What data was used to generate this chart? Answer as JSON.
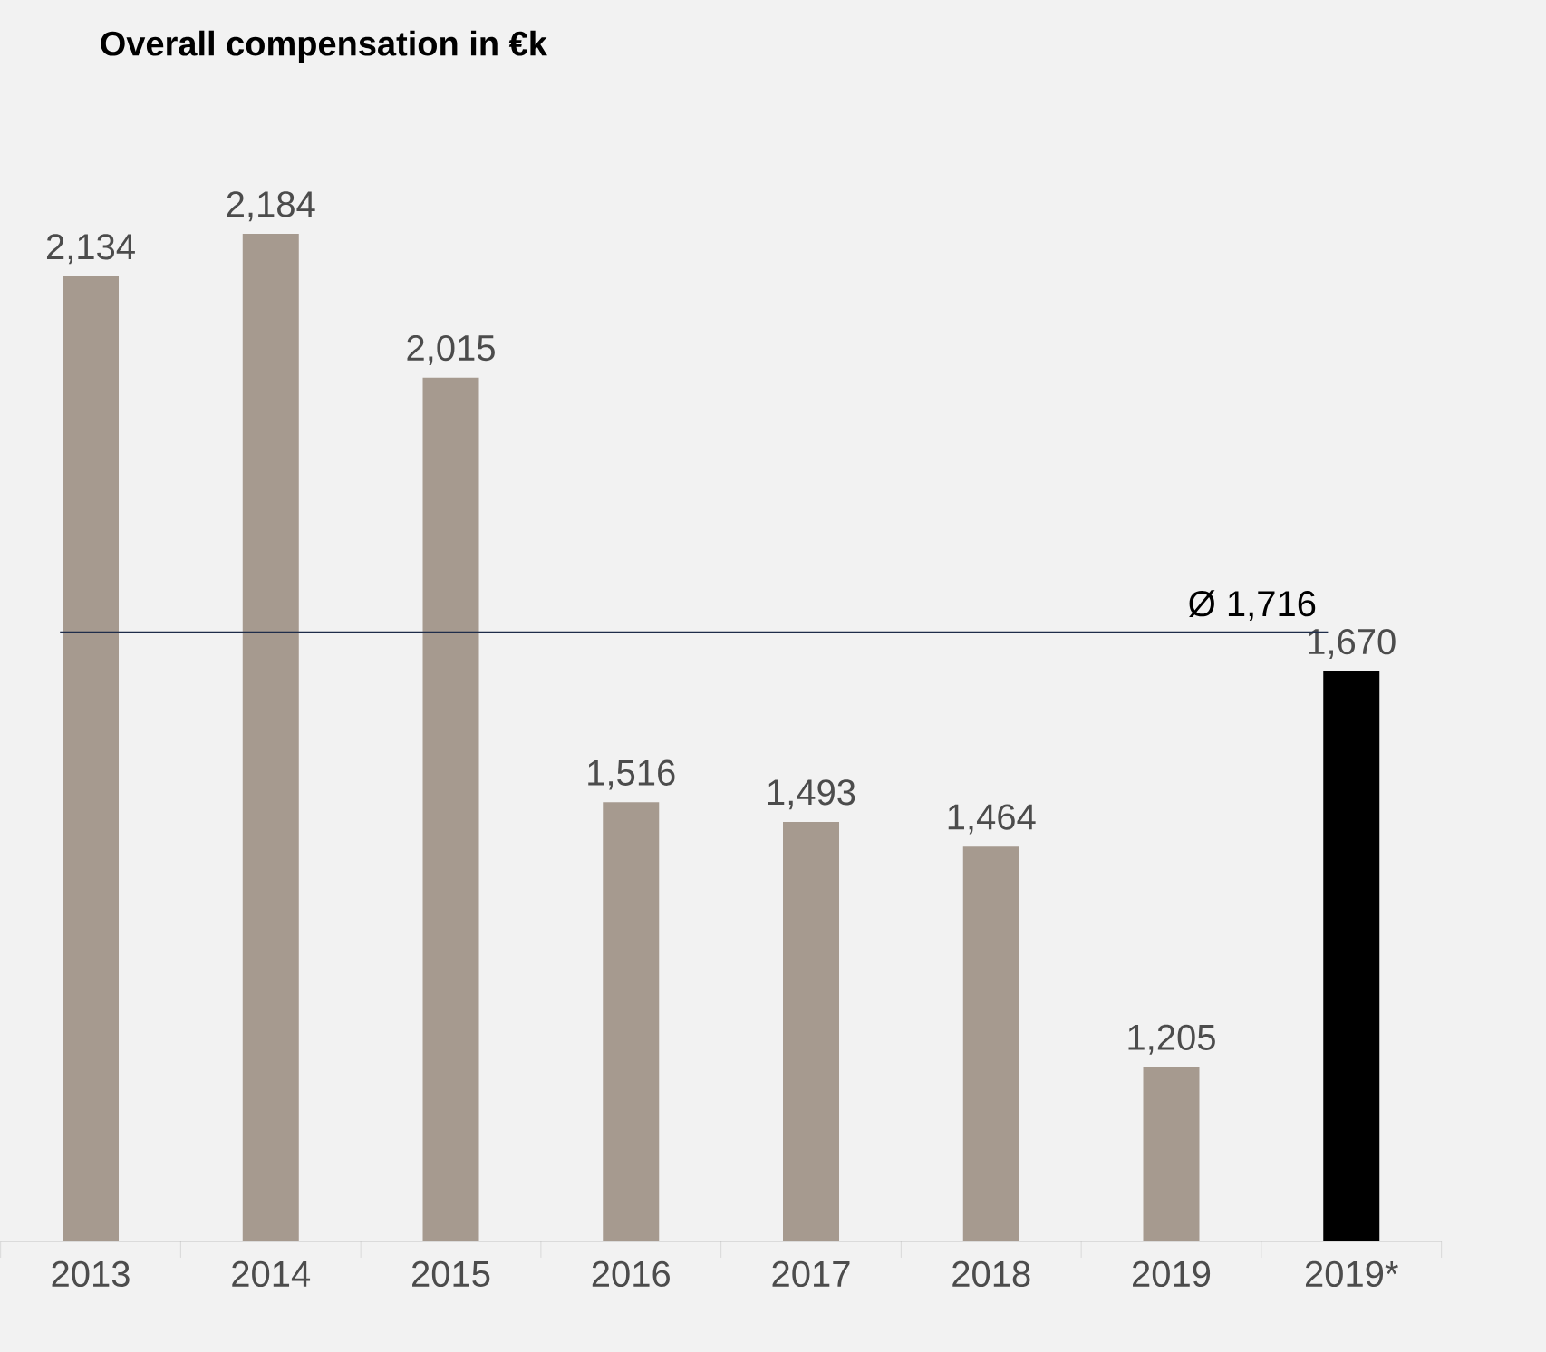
{
  "chart_data": {
    "type": "bar",
    "title": "Overall compensation in €k",
    "categories": [
      "2013",
      "2014",
      "2015",
      "2016",
      "2017",
      "2018",
      "2019",
      "2019*"
    ],
    "values": [
      2134,
      2184,
      2015,
      1516,
      1493,
      1464,
      1205,
      1670
    ],
    "colors": [
      "#a69a8f",
      "#a69a8f",
      "#a69a8f",
      "#a69a8f",
      "#a69a8f",
      "#a69a8f",
      "#a69a8f",
      "#000000"
    ],
    "value_labels": [
      "2,134",
      "2,184",
      "2,015",
      "1,516",
      "1,493",
      "1,464",
      "1,205",
      "1,670"
    ],
    "ylim": [
      1000,
      2184
    ],
    "ref_lines": [
      {
        "axis": "y",
        "value": 1716,
        "label": "Ø 1,716",
        "color": "#1f2d4a"
      }
    ],
    "tick_labels": "x"
  }
}
